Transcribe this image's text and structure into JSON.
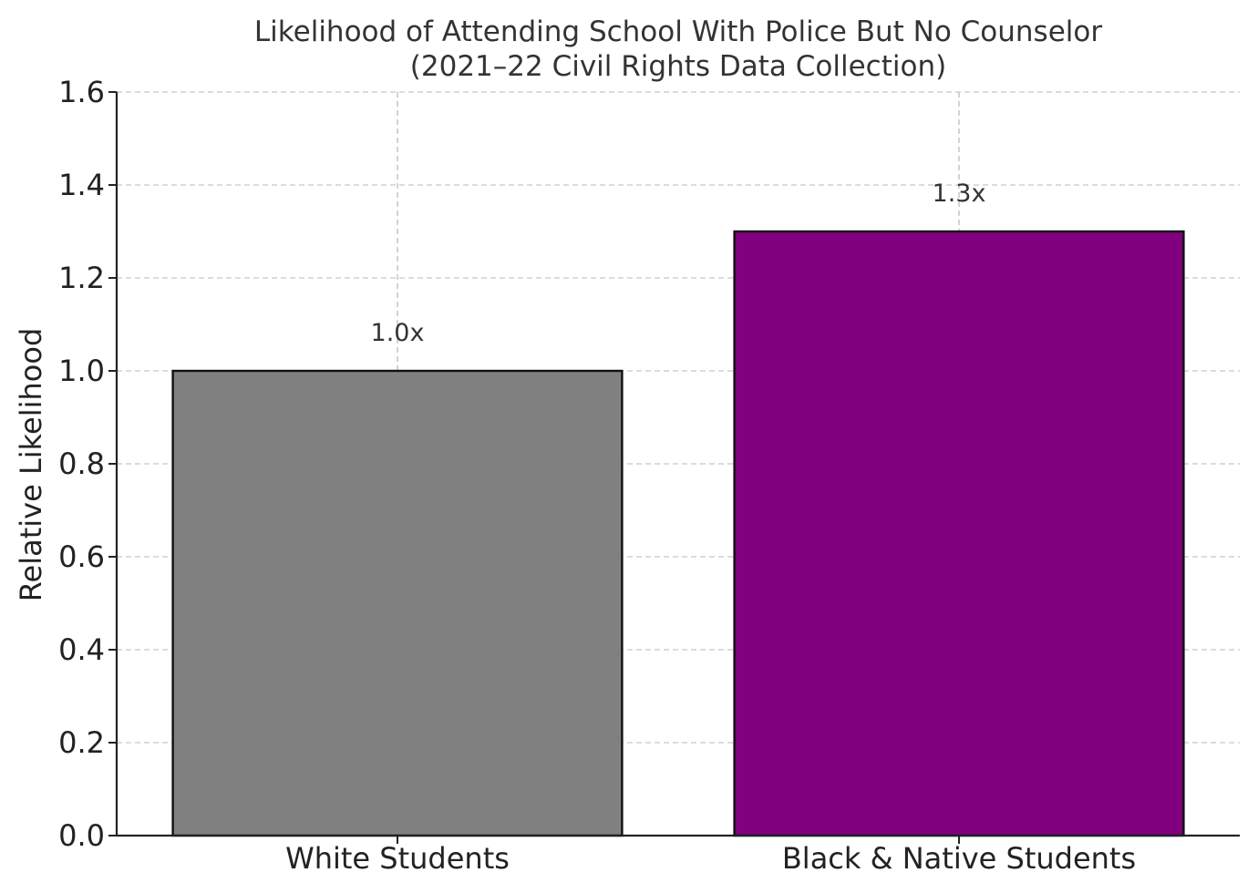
{
  "chart_data": {
    "type": "bar",
    "title_lines": [
      "Likelihood of Attending School With Police But No Counselor",
      "(2021–22 Civil Rights Data Collection)"
    ],
    "xlabel": "",
    "ylabel": "Relative Likelihood",
    "categories": [
      "White Students",
      "Black & Native Students"
    ],
    "values": [
      1.0,
      1.3
    ],
    "value_labels": [
      "1.0x",
      "1.3x"
    ],
    "bar_colors": [
      "#808080",
      "#800080"
    ],
    "ylim": [
      0,
      1.6
    ],
    "yticks": [
      0.0,
      0.2,
      0.4,
      0.6,
      0.8,
      1.0,
      1.2,
      1.4,
      1.6
    ],
    "ytick_labels": [
      "0.0",
      "0.2",
      "0.4",
      "0.6",
      "0.8",
      "1.0",
      "1.2",
      "1.4",
      "1.6"
    ],
    "grid": true,
    "legend": "none"
  }
}
